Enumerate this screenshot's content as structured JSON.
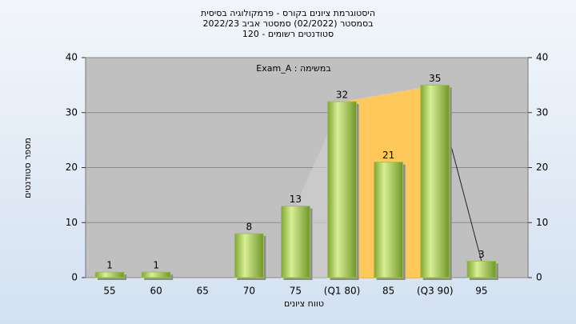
{
  "chart_data": {
    "type": "bar",
    "title": "היסטוגרמת ציונים בקורס - פרמקולוגיה בסיסית",
    "subtitle": "בסמסטר  (02/2022)  סמסטר אביב 2022/23",
    "subtitle2": "סטודנטים רשומים - 120",
    "annotation": "Exam_A : במשימה",
    "x_label": "טווח ציונים",
    "y_label": "מספר סטודנטים",
    "categories": [
      "55",
      "60",
      "65",
      "70",
      "75",
      "(Q1 80)",
      "85",
      "(Q3 90)",
      "95"
    ],
    "values": [
      1,
      1,
      0,
      8,
      13,
      32,
      21,
      35,
      3
    ],
    "color": "#9cc34c",
    "ylim": [
      0,
      40
    ],
    "yticks": [
      0,
      10,
      20,
      30,
      40
    ],
    "y2lim": [
      0,
      40
    ],
    "y2ticks": [
      0,
      10,
      20,
      30,
      40
    ],
    "grid": true
  }
}
